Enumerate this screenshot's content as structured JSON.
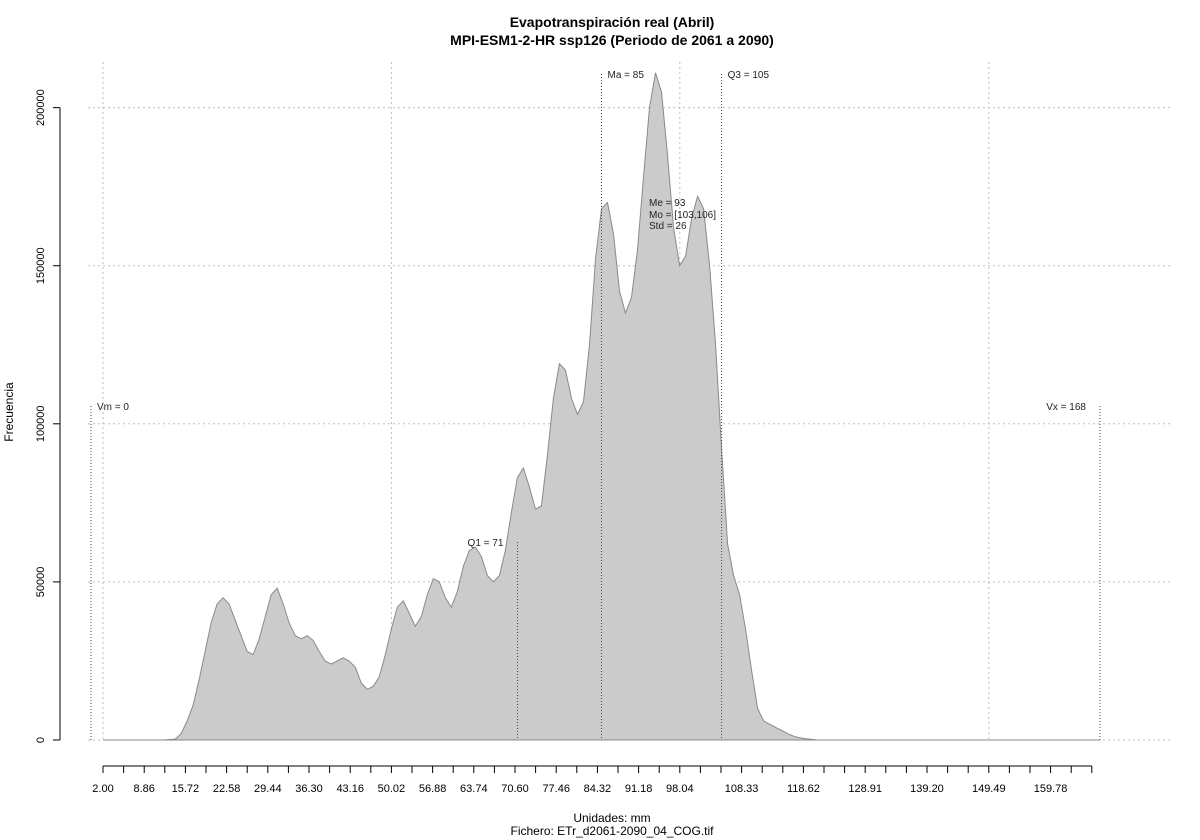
{
  "chart_data": {
    "type": "area",
    "title": "Evapotranspiración real (Abril)",
    "subtitle": "MPI-ESM1-2-HR ssp126 (Periodo de 2061 a 2090)",
    "xlabel": "Unidades: mm",
    "ylabel": "Frecuencia",
    "caption": "Fichero: ETr_d2061-2090_04_COG.tif",
    "xlim": [
      -0.5,
      175
    ],
    "ylim": [
      0,
      210000
    ],
    "grid": true,
    "x_tick_labels": [
      "2.00",
      "8.86",
      "15.72",
      "22.58",
      "29.44",
      "36.30",
      "43.16",
      "50.02",
      "56.88",
      "63.74",
      "70.60",
      "77.46",
      "84.32",
      "91.18",
      "98.04",
      "108.33",
      "118.62",
      "128.91",
      "139.20",
      "149.49",
      "159.78"
    ],
    "x_tick_values": [
      2.0,
      8.86,
      15.72,
      22.58,
      29.44,
      36.3,
      43.16,
      50.02,
      56.88,
      63.74,
      70.6,
      77.46,
      84.32,
      91.18,
      98.04,
      108.33,
      118.62,
      128.91,
      139.2,
      149.49,
      159.78
    ],
    "x_minor_ticks": [
      2.0,
      5.43,
      8.86,
      12.29,
      15.72,
      19.15,
      22.58,
      26.01,
      29.44,
      32.87,
      36.3,
      39.73,
      43.16,
      46.59,
      50.02,
      53.45,
      56.88,
      60.31,
      63.74,
      67.17,
      70.6,
      74.03,
      77.46,
      80.89,
      84.32,
      87.75,
      91.18,
      94.61,
      98.04,
      101.47,
      104.9,
      108.33,
      111.76,
      115.19,
      118.62,
      122.05,
      125.48,
      128.91,
      132.34,
      135.77,
      139.2,
      142.63,
      146.06,
      149.49,
      152.92,
      156.35,
      159.78,
      163.21,
      166.64
    ],
    "y_tick_labels": [
      "0",
      "50000",
      "100000",
      "150000",
      "200000"
    ],
    "y_tick_values": [
      0,
      50000,
      100000,
      150000,
      200000
    ],
    "x_grid_values": [
      2.0,
      50.02,
      98.04,
      149.49
    ],
    "series": [
      {
        "x": [
          2,
          5,
          8,
          10,
          12,
          14,
          15,
          16,
          17,
          18,
          19,
          20,
          21,
          22,
          23,
          24,
          25,
          26,
          27,
          28,
          29,
          30,
          31,
          32,
          33,
          34,
          35,
          36,
          37,
          38,
          39,
          40,
          41,
          42,
          43,
          44,
          45,
          46,
          47,
          48,
          49,
          50,
          51,
          52,
          53,
          54,
          55,
          56,
          57,
          58,
          59,
          60,
          61,
          62,
          63,
          64,
          65,
          66,
          67,
          68,
          69,
          70,
          71,
          72,
          73,
          74,
          75,
          76,
          77,
          78,
          79,
          80,
          81,
          82,
          83,
          84,
          85,
          86,
          87,
          88,
          89,
          90,
          91,
          92,
          93,
          94,
          95,
          96,
          97,
          98,
          99,
          100,
          101,
          102,
          103,
          104,
          105,
          106,
          107,
          108,
          109,
          110,
          111,
          112,
          113,
          114,
          115,
          116,
          117,
          118,
          119,
          120,
          121,
          122,
          123,
          124,
          125,
          126,
          127,
          128,
          129,
          130,
          132,
          134,
          136,
          138,
          140,
          145,
          150,
          155,
          160,
          165,
          168
        ],
        "values": [
          0,
          0,
          0,
          0,
          0,
          300,
          2000,
          6000,
          11000,
          19000,
          28000,
          37000,
          43000,
          45000,
          43000,
          38000,
          33000,
          28000,
          27000,
          32000,
          39000,
          46000,
          48000,
          43000,
          37000,
          33000,
          32000,
          33000,
          31500,
          28000,
          25000,
          24000,
          25000,
          26000,
          25000,
          23000,
          18000,
          16000,
          17000,
          20000,
          27000,
          35000,
          42000,
          44000,
          40000,
          36000,
          39000,
          46000,
          51000,
          50000,
          45000,
          42000,
          47000,
          55000,
          60000,
          61000,
          58000,
          52000,
          50000,
          52000,
          60000,
          72000,
          83000,
          86000,
          80000,
          73000,
          74000,
          90000,
          108000,
          119000,
          117000,
          108000,
          103000,
          107000,
          125000,
          152000,
          168000,
          170000,
          160000,
          142000,
          135000,
          140000,
          155000,
          178000,
          200000,
          211000,
          205000,
          185000,
          162000,
          150000,
          153000,
          165000,
          172000,
          168000,
          150000,
          125000,
          92000,
          62000,
          52000,
          46000,
          35000,
          22000,
          10000,
          6000,
          5000,
          4000,
          3000,
          2000,
          1200,
          700,
          400,
          200,
          0,
          0,
          0,
          0,
          0,
          0,
          0,
          0,
          0,
          0,
          0,
          0,
          0,
          0,
          0,
          0,
          0,
          0,
          0,
          0,
          0
        ]
      }
    ],
    "reference_lines": [
      {
        "label": "Vm = 0",
        "x": 0,
        "height": 105000
      },
      {
        "label": "Q1 = 71",
        "x": 71,
        "height": 62000
      },
      {
        "label": "Ma = 85",
        "x": 85,
        "height": 210000
      },
      {
        "label": "Q3 = 105",
        "x": 105,
        "height": 210000
      },
      {
        "label": "Vx = 168",
        "x": 168,
        "height": 105000
      }
    ],
    "stats_annotation": [
      "Me = 93",
      "Mo = [103,106]",
      "Std = 26"
    ],
    "colors": {
      "fill": "#cbcbcb",
      "outline": "#8a8a8a",
      "grid": "#bdbdbd",
      "reference": "#444444"
    }
  }
}
